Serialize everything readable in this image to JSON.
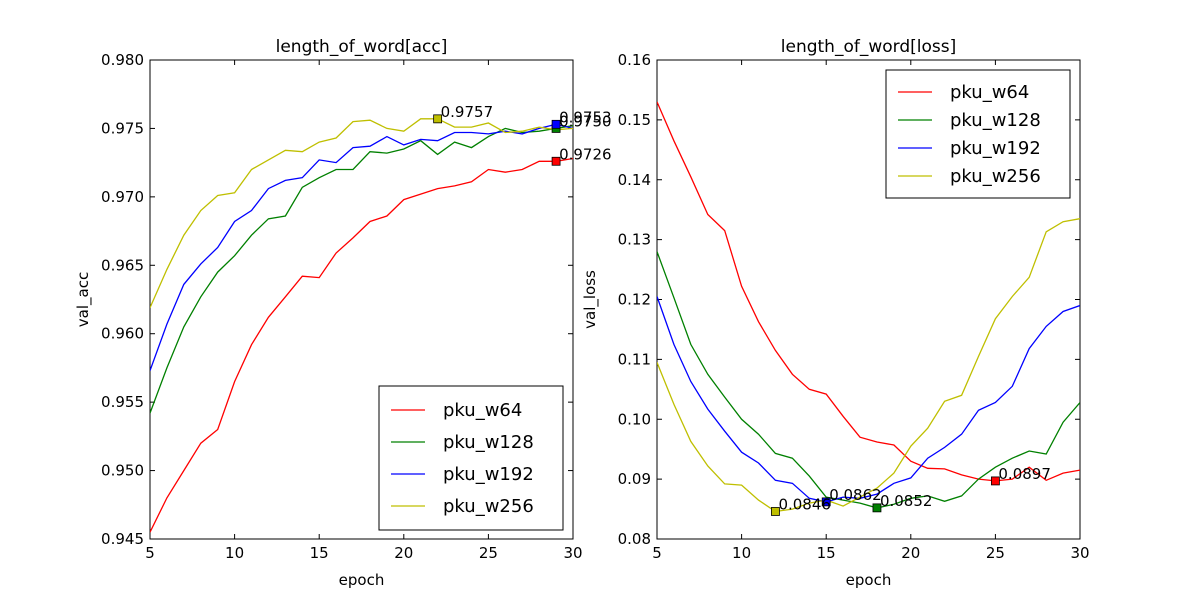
{
  "chart_data": [
    {
      "type": "line",
      "title": "length_of_word[acc]",
      "xlabel": "epoch",
      "ylabel": "val_acc",
      "xlim": [
        5,
        30
      ],
      "ylim": [
        0.945,
        0.98
      ],
      "xticks": [
        5,
        10,
        15,
        20,
        25,
        30
      ],
      "xtick_labels": [
        "5",
        "10",
        "15",
        "20",
        "25",
        "30"
      ],
      "yticks": [
        0.945,
        0.95,
        0.955,
        0.96,
        0.965,
        0.97,
        0.975,
        0.98
      ],
      "ytick_labels": [
        "0.945",
        "0.950",
        "0.955",
        "0.960",
        "0.965",
        "0.970",
        "0.975",
        "0.980"
      ],
      "legend_position": "lower-right",
      "x": [
        5,
        6,
        7,
        8,
        9,
        10,
        11,
        12,
        13,
        14,
        15,
        16,
        17,
        18,
        19,
        20,
        21,
        22,
        23,
        24,
        25,
        26,
        27,
        28,
        29,
        30
      ],
      "series": [
        {
          "name": "pku_w64",
          "color": "#ff0000",
          "values": [
            0.9455,
            0.948,
            0.95,
            0.952,
            0.953,
            0.9565,
            0.9592,
            0.9612,
            0.9627,
            0.9642,
            0.9641,
            0.9659,
            0.967,
            0.9682,
            0.9686,
            0.9698,
            0.9702,
            0.9706,
            0.9708,
            0.9711,
            0.972,
            0.9718,
            0.972,
            0.9726,
            0.9726,
            0.9728
          ],
          "marker": {
            "x": 29,
            "y": 0.9726,
            "label": "0.9726"
          }
        },
        {
          "name": "pku_w128",
          "color": "#008000",
          "values": [
            0.9542,
            0.9575,
            0.9605,
            0.9627,
            0.9645,
            0.9657,
            0.9672,
            0.9684,
            0.9686,
            0.9707,
            0.9714,
            0.972,
            0.972,
            0.9733,
            0.9732,
            0.9735,
            0.9741,
            0.9731,
            0.974,
            0.9736,
            0.9744,
            0.975,
            0.9747,
            0.9748,
            0.975,
            0.9752
          ],
          "marker": {
            "x": 29,
            "y": 0.975,
            "label": "0.9750"
          }
        },
        {
          "name": "pku_w192",
          "color": "#0000ff",
          "values": [
            0.9573,
            0.9607,
            0.9636,
            0.9651,
            0.9663,
            0.9682,
            0.969,
            0.9706,
            0.9712,
            0.9714,
            0.9727,
            0.9725,
            0.9736,
            0.9737,
            0.9744,
            0.9738,
            0.9742,
            0.9741,
            0.9747,
            0.9747,
            0.9746,
            0.9748,
            0.9746,
            0.975,
            0.9753,
            0.975
          ],
          "marker": {
            "x": 29,
            "y": 0.9753,
            "label": "0.9753"
          }
        },
        {
          "name": "pku_w256",
          "color": "#bfbf00",
          "values": [
            0.9619,
            0.9647,
            0.9672,
            0.969,
            0.9701,
            0.9703,
            0.972,
            0.9727,
            0.9734,
            0.9733,
            0.974,
            0.9743,
            0.9755,
            0.9756,
            0.975,
            0.9748,
            0.9757,
            0.9757,
            0.9751,
            0.9751,
            0.9754,
            0.9747,
            0.9748,
            0.9751,
            0.9749,
            0.975
          ],
          "marker": {
            "x": 22,
            "y": 0.9757,
            "label": "0.9757"
          }
        }
      ]
    },
    {
      "type": "line",
      "title": "length_of_word[loss]",
      "xlabel": "epoch",
      "ylabel": "val_loss",
      "xlim": [
        5,
        30
      ],
      "ylim": [
        0.08,
        0.16
      ],
      "xticks": [
        5,
        10,
        15,
        20,
        25,
        30
      ],
      "xtick_labels": [
        "5",
        "10",
        "15",
        "20",
        "25",
        "30"
      ],
      "yticks": [
        0.08,
        0.09,
        0.1,
        0.11,
        0.12,
        0.13,
        0.14,
        0.15,
        0.16
      ],
      "ytick_labels": [
        "0.08",
        "0.09",
        "0.10",
        "0.11",
        "0.12",
        "0.13",
        "0.14",
        "0.15",
        "0.16"
      ],
      "legend_position": "top-right",
      "x": [
        5,
        6,
        7,
        8,
        9,
        10,
        11,
        12,
        13,
        14,
        15,
        16,
        17,
        18,
        19,
        20,
        21,
        22,
        23,
        24,
        25,
        26,
        27,
        28,
        29,
        30
      ],
      "series": [
        {
          "name": "pku_w64",
          "color": "#ff0000",
          "values": [
            0.153,
            0.1465,
            0.1405,
            0.1342,
            0.1315,
            0.1222,
            0.1163,
            0.1115,
            0.1075,
            0.105,
            0.1042,
            0.1005,
            0.097,
            0.0962,
            0.0957,
            0.093,
            0.0918,
            0.0917,
            0.0907,
            0.09,
            0.0897,
            0.09,
            0.092,
            0.0898,
            0.091,
            0.0915
          ],
          "marker": {
            "x": 25,
            "y": 0.0897,
            "label": "0.0897"
          }
        },
        {
          "name": "pku_w128",
          "color": "#008000",
          "values": [
            0.128,
            0.1203,
            0.1125,
            0.1075,
            0.1037,
            0.1,
            0.0975,
            0.0943,
            0.0935,
            0.0905,
            0.087,
            0.0865,
            0.086,
            0.0852,
            0.0858,
            0.0868,
            0.0872,
            0.0863,
            0.0872,
            0.09,
            0.092,
            0.0935,
            0.0947,
            0.0942,
            0.0995,
            0.1028
          ],
          "marker": {
            "x": 18,
            "y": 0.0852,
            "label": "0.0852"
          }
        },
        {
          "name": "pku_w192",
          "color": "#0000ff",
          "values": [
            0.1205,
            0.1125,
            0.1063,
            0.1017,
            0.098,
            0.0945,
            0.0927,
            0.0898,
            0.0893,
            0.0868,
            0.0862,
            0.087,
            0.0868,
            0.0875,
            0.0893,
            0.0902,
            0.0935,
            0.0953,
            0.0975,
            0.1015,
            0.1028,
            0.1055,
            0.1118,
            0.1155,
            0.118,
            0.119
          ],
          "marker": {
            "x": 15,
            "y": 0.0862,
            "label": "0.0862"
          }
        },
        {
          "name": "pku_w256",
          "color": "#bfbf00",
          "values": [
            0.1095,
            0.1025,
            0.0963,
            0.0922,
            0.0892,
            0.089,
            0.0865,
            0.0846,
            0.085,
            0.086,
            0.0865,
            0.0855,
            0.087,
            0.0885,
            0.091,
            0.0955,
            0.0985,
            0.103,
            0.104,
            0.1105,
            0.1168,
            0.1205,
            0.1237,
            0.1313,
            0.133,
            0.1335
          ],
          "marker": {
            "x": 12,
            "y": 0.0846,
            "label": "0.0846"
          }
        }
      ]
    }
  ]
}
